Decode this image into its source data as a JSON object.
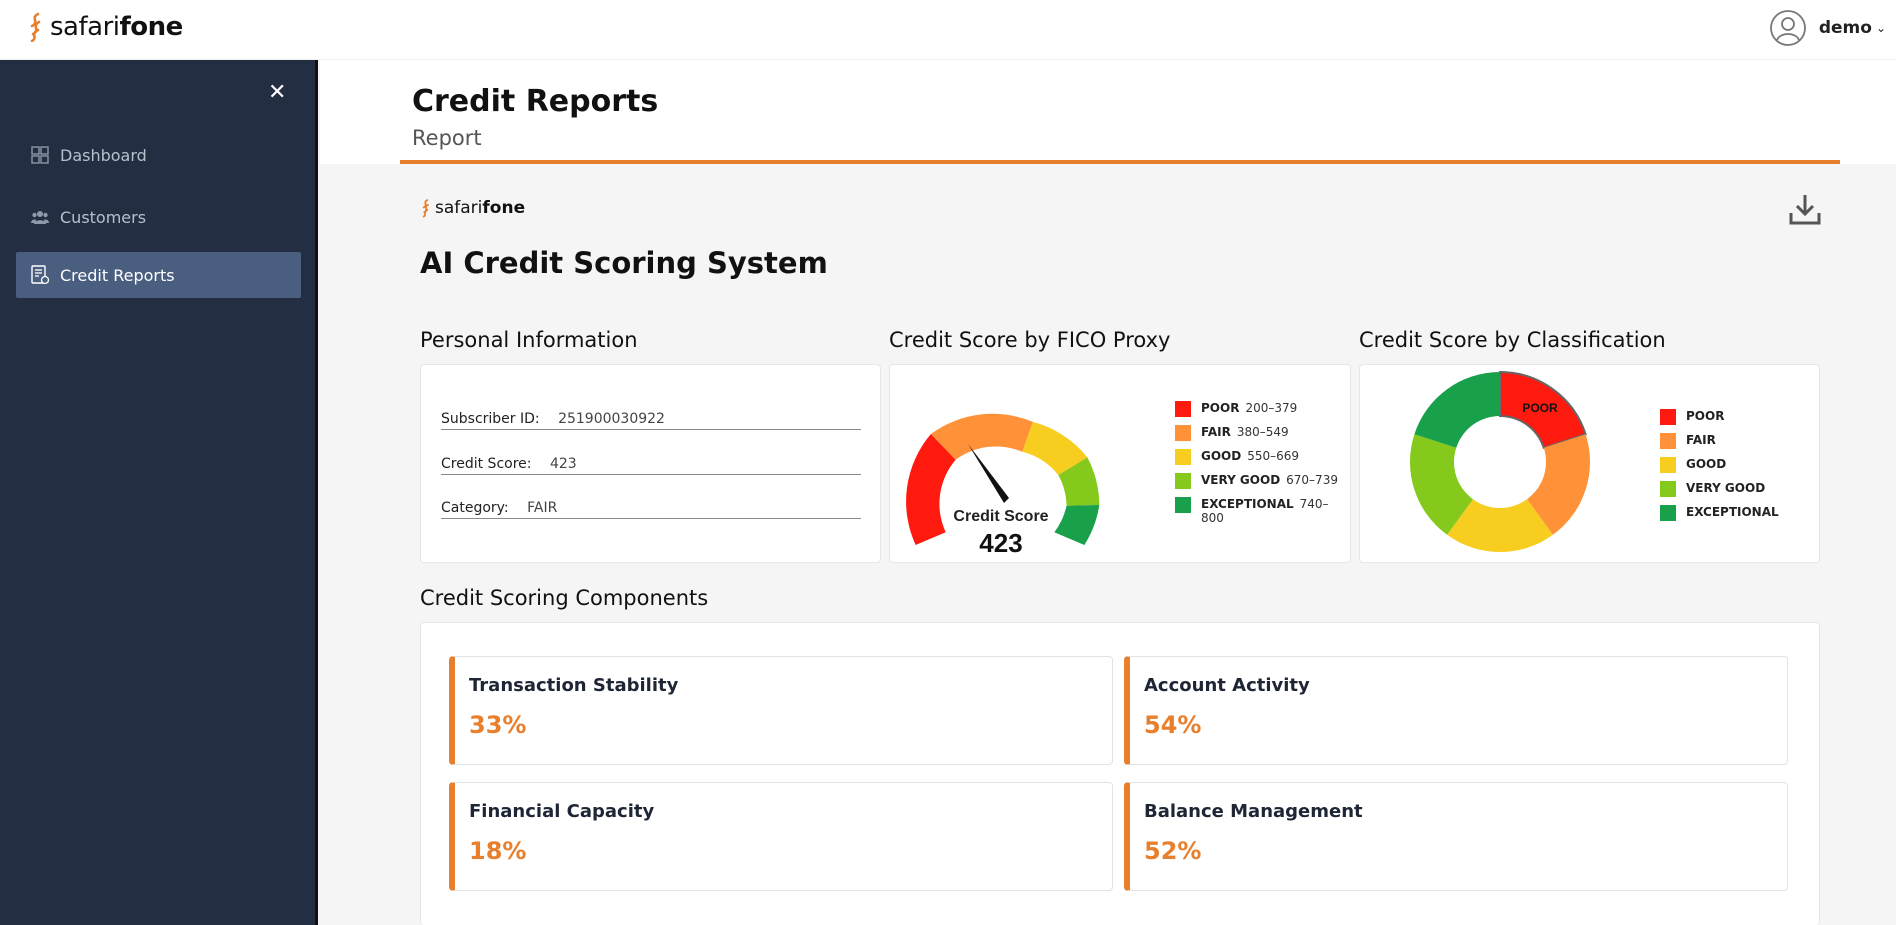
{
  "brand": {
    "name_light": "safari",
    "name_bold": "fone",
    "accent_color": "#e87f2c"
  },
  "user": {
    "name": "demo"
  },
  "sidebar": {
    "items": [
      {
        "label": "Dashboard",
        "icon": "grid-icon",
        "active": false
      },
      {
        "label": "Customers",
        "icon": "users-icon",
        "active": false
      },
      {
        "label": "Credit Reports",
        "icon": "report-icon",
        "active": true
      }
    ]
  },
  "header": {
    "title": "Credit Reports",
    "subtitle": "Report"
  },
  "report": {
    "title": "AI Credit Scoring System",
    "personal_info": {
      "heading": "Personal Information",
      "subscriber_label": "Subscriber ID:",
      "subscriber_id": "251900030922",
      "score_label": "Credit Score:",
      "score": "423",
      "category_label": "Category:",
      "category": "FAIR"
    },
    "fico": {
      "heading": "Credit Score by FICO Proxy",
      "gauge_label": "Credit Score",
      "score": "423",
      "legend": [
        {
          "name": "POOR",
          "range": "200–379",
          "color": "#ff1a0f"
        },
        {
          "name": "FAIR",
          "range": "380–549",
          "color": "#ff9138"
        },
        {
          "name": "GOOD",
          "range": "550–669",
          "color": "#f7cd1f"
        },
        {
          "name": "VERY GOOD",
          "range": "670–739",
          "color": "#84c91c"
        },
        {
          "name": "EXCEPTIONAL",
          "range": "740–800",
          "color": "#18a04a"
        }
      ]
    },
    "classification": {
      "heading": "Credit Score by Classification",
      "highlight_label": "POOR",
      "legend": [
        {
          "name": "POOR",
          "color": "#ff1a0f"
        },
        {
          "name": "FAIR",
          "color": "#ff9138"
        },
        {
          "name": "GOOD",
          "color": "#f7cd1f"
        },
        {
          "name": "VERY GOOD",
          "color": "#84c91c"
        },
        {
          "name": "EXCEPTIONAL",
          "color": "#18a04a"
        }
      ]
    },
    "components": {
      "heading": "Credit Scoring Components",
      "items": [
        {
          "name": "Transaction Stability",
          "value": "33%"
        },
        {
          "name": "Account Activity",
          "value": "54%"
        },
        {
          "name": "Financial Capacity",
          "value": "18%"
        },
        {
          "name": "Balance Management",
          "value": "52%"
        }
      ]
    }
  }
}
